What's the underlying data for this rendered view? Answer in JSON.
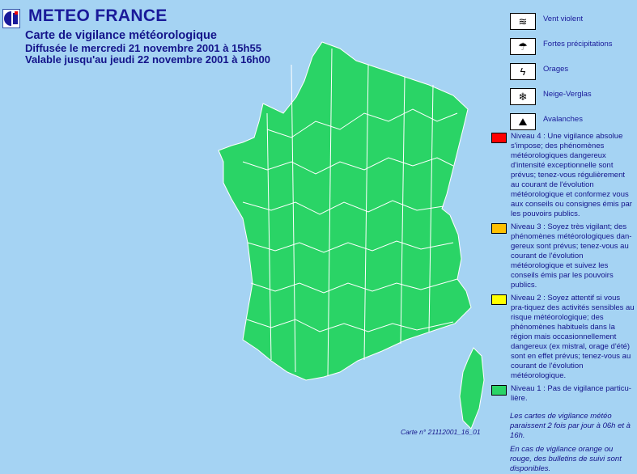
{
  "header": {
    "brand": "METEO FRANCE",
    "title": "Carte de vigilance météorologique",
    "issued": "Diffusée le mercredi 21 novembre 2001 à 15h55",
    "valid": "Valable jusqu'au jeudi 22 novembre 2001 à 16h00"
  },
  "map": {
    "fill_color": "#2ad466",
    "border_color": "#ffffff"
  },
  "hazards": [
    {
      "icon": "wind-icon",
      "label": "Vent violent"
    },
    {
      "icon": "rain-icon",
      "label": "Fortes précipitations"
    },
    {
      "icon": "thunderstorm-icon",
      "label": "Orages"
    },
    {
      "icon": "snow-ice-icon",
      "label": "Neige-Verglas"
    },
    {
      "icon": "avalanche-icon",
      "label": "Avalanches"
    }
  ],
  "levels": [
    {
      "color": "#ff0000",
      "text": "Niveau 4 : Une vigilance absolue s'impose; des phénomènes météorologiques dangereux d'intensité exceptionnelle sont prévus; tenez-vous régulièrement au courant de l'évolution météorologique et conformez vous aux conseils ou consignes émis par les pouvoirs publics."
    },
    {
      "color": "#ffc000",
      "text": "Niveau 3 : Soyez très vigilant; des phénomènes météorologiques dan-gereux sont prévus; tenez-vous au courant de l'évolution météorologique et suivez les conseils émis par les pouvoirs publics."
    },
    {
      "color": "#ffff00",
      "text": "Niveau 2 : Soyez attentif si vous pra-tiquez des activités sensibles au risque météorologique; des phénomènes habituels dans la région mais occasionnellement dangereux (ex mistral, orage d'été) sont en effet prévus; tenez-vous au courant de l'évolution météorologique."
    },
    {
      "color": "#2ad466",
      "text": "Niveau 1 : Pas de vigilance particu-lière."
    }
  ],
  "notes": [
    "Les cartes de vigilance météo paraissent 2 fois par jour à 06h et à 16h.",
    "En cas de vigilance orange ou rouge, des bulletins de suivi sont disponibles."
  ],
  "map_id": "Carte n° 21112001_16_01"
}
